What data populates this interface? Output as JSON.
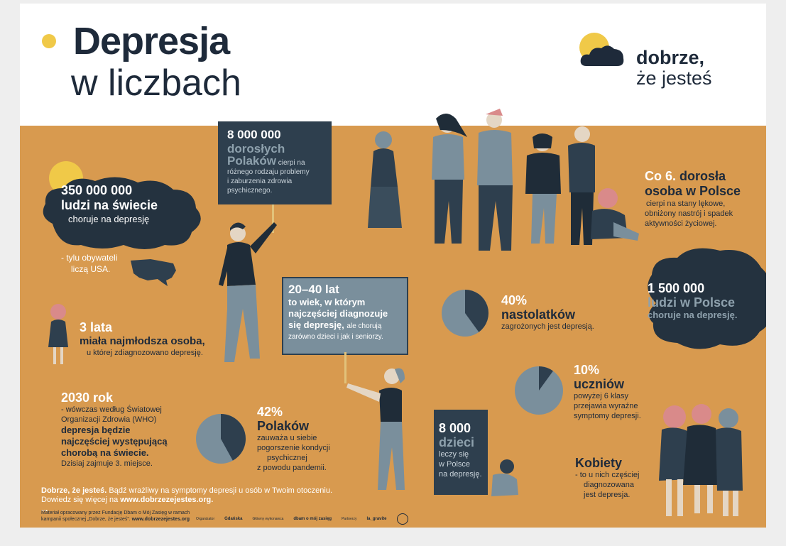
{
  "header": {
    "title_line1": "Depresja",
    "title_line2": "w liczbach",
    "logo_line1": "dobrze,",
    "logo_line2": "że jesteś"
  },
  "stat_world": {
    "number": "350 000 000",
    "line2": "ludzi na świecie",
    "line3": "choruje na depresję",
    "note1": "-  tylu obywateli",
    "note2": "liczą USA."
  },
  "stat_poland_adults": {
    "number": "8 000 000",
    "line2": "dorosłych",
    "line3": "Polaków",
    "rest1": "cierpi na",
    "rest2": "różnego rodzaju problemy",
    "rest3": "i zaburzenia zdrowia",
    "rest4": "psychicznego."
  },
  "stat_every6": {
    "line1_a": "Co 6.",
    "line1_b": "dorosła",
    "line2": "osoba w Polsce",
    "d1": "cierpi na stany lękowe,",
    "d2": "obniżony nastrój i spadek",
    "d3": "aktywności życiowej."
  },
  "stat_3years": {
    "line1": "3 lata",
    "line2": "miała najmłodsza osoba,",
    "line3": "u której zdiagnozowano depresję."
  },
  "stat_age": {
    "line1": "20–40 lat",
    "line2": "to wiek, w którym",
    "line3": "najczęściej diagnozuje",
    "line4a": "się depresję,",
    "line4b": "ale chorują",
    "line5": "zarówno dzieci i jak i seniorzy."
  },
  "stat_teens": {
    "pct": "40%",
    "label": "nastolatków",
    "desc": "zagrożonych jest depresją.",
    "value": 0.4
  },
  "stat_1500k": {
    "line1": "1 500 000",
    "line2": "ludzi w Polsce",
    "line3": "choruje na depresję."
  },
  "stat_students": {
    "pct": "10%",
    "label": "uczniów",
    "d1": "powyżej 6 klasy",
    "d2": "przejawia wyraźne",
    "d3": "symptomy depresji.",
    "value": 0.1
  },
  "stat_2030": {
    "line1": "2030 rok",
    "d1": "- wówczas według Światowej",
    "d2": "Organizacji Zdrowia (WHO)",
    "d3": "depresja będzie",
    "d4": "najczęściej występującą",
    "d5": "chorobą na świecie.",
    "d6": "Dzisiaj zajmuje 3. miejsce."
  },
  "stat_poles42": {
    "pct": "42%",
    "label": "Polaków",
    "d1": "zauważa u siebie",
    "d2": "pogorszenie kondycji",
    "d3": "psychicznej",
    "d4": "z powodu pandemii.",
    "value": 0.42
  },
  "stat_children": {
    "line1": "8 000",
    "line2": "dzieci",
    "d1": "leczy się",
    "d2": "w Polsce",
    "d3": "na depresję."
  },
  "stat_women": {
    "line1": "Kobiety",
    "d1": "- to u nich częściej",
    "d2": "diagnozowana",
    "d3": "jest depresja."
  },
  "footer": {
    "line1a": "Dobrze, że jesteś.",
    "line1b": "Bądź wrażliwy na symptomy depresji u osób w Twoim otoczeniu.",
    "line2a": "Dowiedz się więcej na",
    "line2b": "www.dobrzezejestes.org.",
    "ellipsis": "...",
    "credit1": "Materiał opracowany przez Fundację Dbam o Mój Zasięg w ramach",
    "credit2a": "kampanii społecznej „Dobrze, że jesteś”.",
    "credit2b": "www.dobrzezejestes.org",
    "partner1": "Organizator",
    "partner2": "Gdańska",
    "partner3": "Główny wykonawca",
    "partner4": "dbam o mój zasięg",
    "partner5": "Partnerzy",
    "partner6": "la_gravite"
  },
  "colors": {
    "orange": "#d89a4f",
    "navy": "#1e2a3a",
    "slate": "#2e3f4e",
    "steel": "#7a8f9c",
    "yellow": "#f0c948",
    "pink": "#d98a8a"
  }
}
